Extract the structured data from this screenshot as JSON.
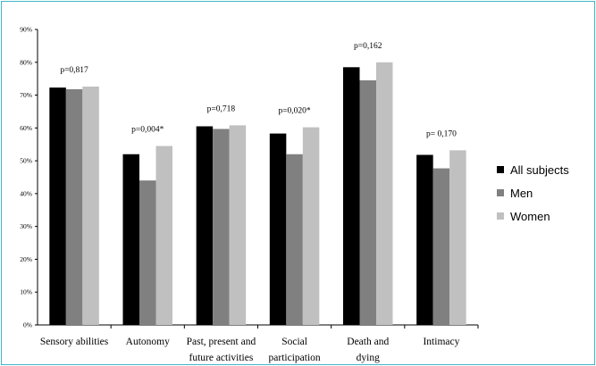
{
  "chart_data": {
    "type": "bar",
    "categories": [
      [
        "Sensory abilities"
      ],
      [
        "Autonomy"
      ],
      [
        "Past, present and",
        "future activities"
      ],
      [
        "Social",
        "participation"
      ],
      [
        "Death and",
        "dying"
      ],
      [
        "Intimacy"
      ]
    ],
    "series": [
      {
        "name": "All subjects",
        "color": "#000000",
        "values": [
          72.3,
          52.0,
          60.5,
          58.3,
          78.5,
          51.8
        ]
      },
      {
        "name": "Men",
        "color": "#808080",
        "values": [
          71.8,
          44.0,
          59.7,
          52.0,
          74.5,
          47.7
        ]
      },
      {
        "name": "Women",
        "color": "#c0c0c0",
        "values": [
          72.6,
          54.5,
          60.8,
          60.2,
          80.0,
          53.2
        ]
      }
    ],
    "annotations": [
      "p=0,817",
      "p=0,004*",
      "p=0,718",
      "p=0,020*",
      "p=0,162",
      "p= 0,170"
    ],
    "y_ticks": [
      "0%",
      "10%",
      "20%",
      "30%",
      "40%",
      "50%",
      "60%",
      "70%",
      "80%",
      "90%"
    ],
    "ylim": [
      0,
      90
    ],
    "title": "",
    "xlabel": "",
    "ylabel": "",
    "legend_position": "right",
    "grid": false
  }
}
